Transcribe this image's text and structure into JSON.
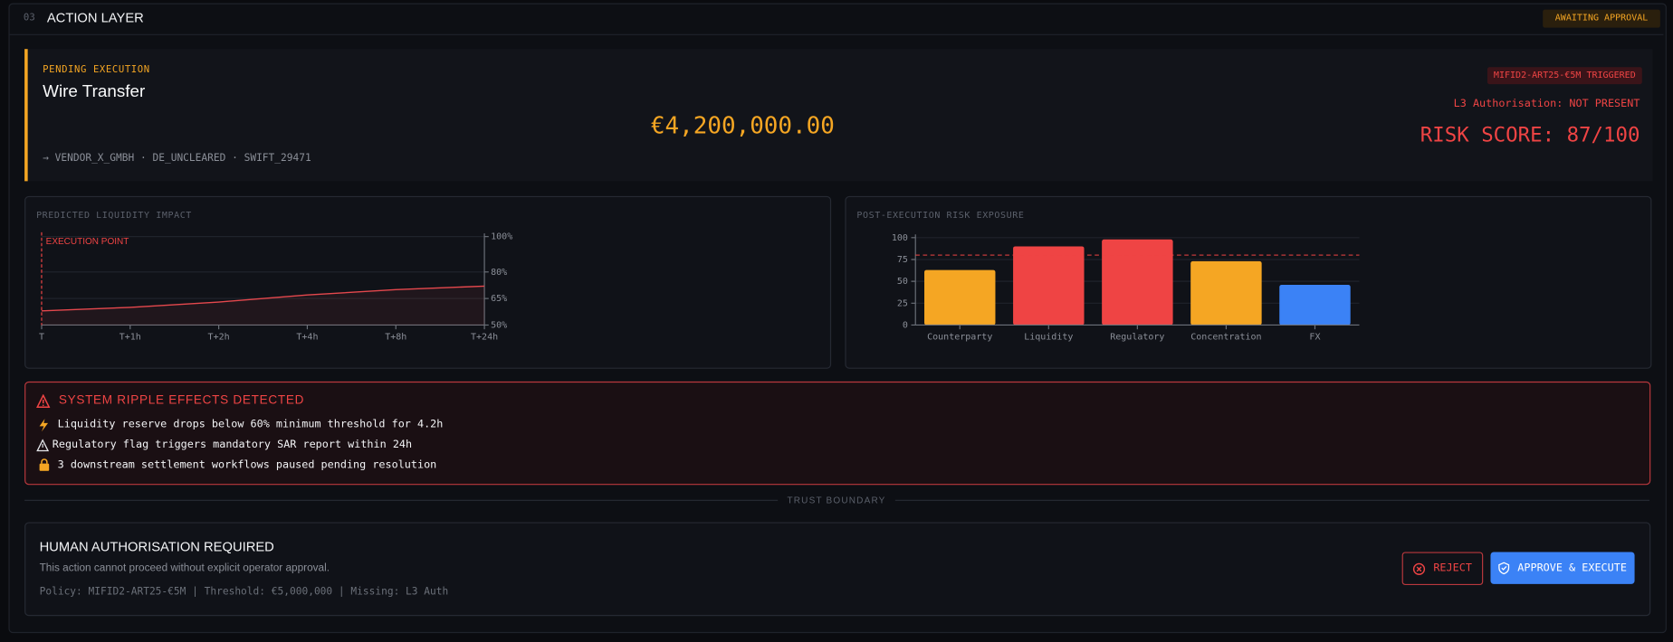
{
  "header": {
    "index": "03",
    "title": "ACTION LAYER",
    "status": "AWAITING APPROVAL"
  },
  "transaction": {
    "label": "PENDING EXECUTION",
    "title": "Wire Transfer",
    "amount": "€4,200,000.00",
    "route": "→ VENDOR_X_GMBH · DE_UNCLEARED · SWIFT_29471",
    "policy_flag": "MIFID2-ART25-€5M TRIGGERED",
    "authorisation": "L3 Authorisation: NOT PRESENT",
    "risk_score": "RISK SCORE: 87/100"
  },
  "chart_data": [
    {
      "type": "line",
      "title": "PREDICTED LIQUIDITY IMPACT",
      "categories": [
        "T",
        "T+1h",
        "T+2h",
        "T+4h",
        "T+8h",
        "T+24h"
      ],
      "values": [
        58,
        60,
        63,
        67,
        70,
        72
      ],
      "color": "#e5484d",
      "ylim": [
        50,
        100
      ],
      "yticks": [
        {
          "value": 50,
          "label": "50%"
        },
        {
          "value": 65,
          "label": "65%"
        },
        {
          "value": 80,
          "label": "80%"
        },
        {
          "value": 100,
          "label": "100%"
        }
      ],
      "y_axis_side": "right",
      "annotation": "EXECUTION POINT",
      "grid": true
    },
    {
      "type": "bar",
      "title": "POST-EXECUTION RISK EXPOSURE",
      "categories": [
        "Counterparty",
        "Liquidity",
        "Regulatory",
        "Concentration",
        "FX"
      ],
      "values": [
        63,
        90,
        98,
        73,
        46
      ],
      "colors": [
        "#f5a623",
        "#ef4444",
        "#ef4444",
        "#f5a623",
        "#3b82f6"
      ],
      "ylim": [
        0,
        100
      ],
      "yticks": [
        0,
        25,
        50,
        75,
        100
      ],
      "threshold": 80,
      "grid": true
    }
  ],
  "ripple_effects": {
    "title": "SYSTEM RIPPLE EFFECTS DETECTED",
    "items": [
      "Liquidity reserve drops below 60% minimum threshold for 4.2h",
      "Regulatory flag triggers mandatory SAR report within 24h",
      "3 downstream settlement workflows paused pending resolution"
    ]
  },
  "trust_boundary": "TRUST BOUNDARY",
  "authorisation": {
    "title": "HUMAN AUTHORISATION REQUIRED",
    "description": "This action cannot proceed without explicit operator approval.",
    "policy": "Policy: MIFID2-ART25-€5M | Threshold: €5,000,000 | Missing: L3 Auth",
    "buttons": {
      "reject": "REJECT",
      "approve": "APPROVE & EXECUTE"
    }
  }
}
